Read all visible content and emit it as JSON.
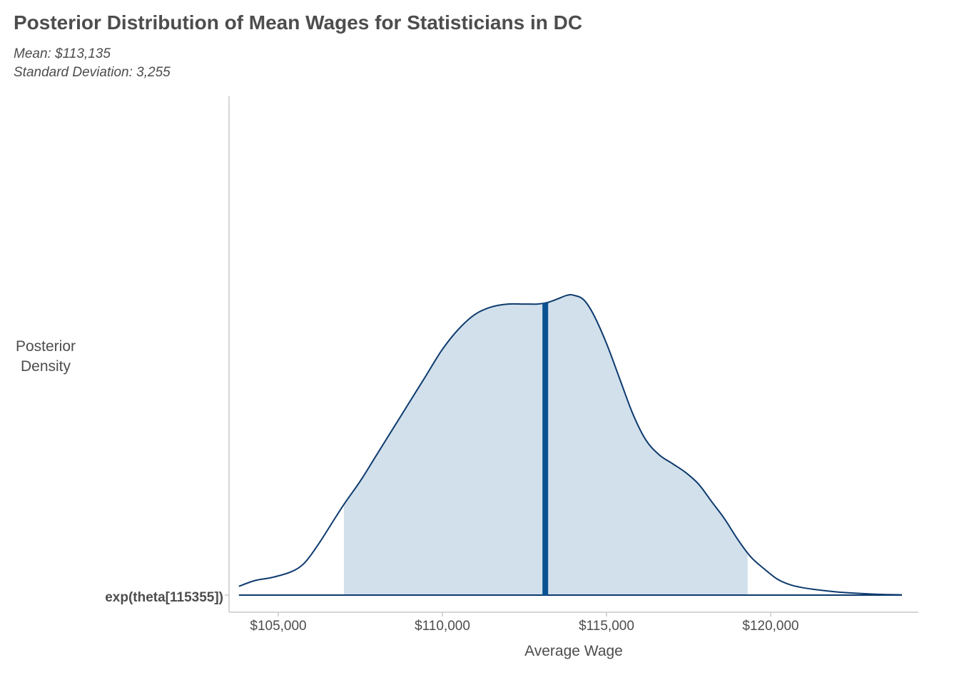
{
  "chart_data": {
    "type": "area",
    "title": "Posterior Distribution of Mean Wages for Statisticians in DC",
    "subtitle_lines": [
      "Mean: $113,135",
      "Standard Deviation: 3,255"
    ],
    "xlabel": "Average Wage",
    "ylabel_lines": [
      "Posterior",
      "Density"
    ],
    "y_category": "exp(theta[115355])",
    "xlim": [
      103500,
      124500
    ],
    "x_ticks": [
      105000,
      110000,
      115000,
      120000
    ],
    "x_tick_labels": [
      "$105,000",
      "$110,000",
      "$115,000",
      "$120,000"
    ],
    "credible_interval": [
      107000,
      119300
    ],
    "mean": 113135,
    "density_max_relative": 1.0,
    "density": {
      "x": [
        103800,
        104300,
        104800,
        105400,
        105800,
        106200,
        106600,
        107000,
        107500,
        108000,
        108500,
        109000,
        109500,
        110000,
        110500,
        111000,
        111500,
        112000,
        112500,
        112900,
        113200,
        113500,
        113800,
        114000,
        114300,
        114600,
        115000,
        115400,
        115800,
        116200,
        116600,
        117000,
        117400,
        117800,
        118200,
        118600,
        119000,
        119400,
        119800,
        120200,
        120600,
        121000,
        121500,
        122000,
        122500,
        123000,
        123500,
        124000
      ],
      "y": [
        0.03,
        0.05,
        0.06,
        0.08,
        0.11,
        0.17,
        0.24,
        0.31,
        0.39,
        0.48,
        0.57,
        0.66,
        0.75,
        0.84,
        0.91,
        0.96,
        0.985,
        0.995,
        0.995,
        0.995,
        1.0,
        1.012,
        1.025,
        1.025,
        1.01,
        0.96,
        0.86,
        0.74,
        0.62,
        0.53,
        0.48,
        0.45,
        0.42,
        0.38,
        0.32,
        0.26,
        0.19,
        0.13,
        0.09,
        0.055,
        0.035,
        0.025,
        0.017,
        0.011,
        0.007,
        0.004,
        0.002,
        0.001
      ]
    },
    "colors": {
      "line": "#0d3a6e",
      "fill": "#d1e0eb",
      "mean_line": "#0a5292",
      "axis": "#c8c8c8"
    },
    "grid": false,
    "legend": "none"
  }
}
